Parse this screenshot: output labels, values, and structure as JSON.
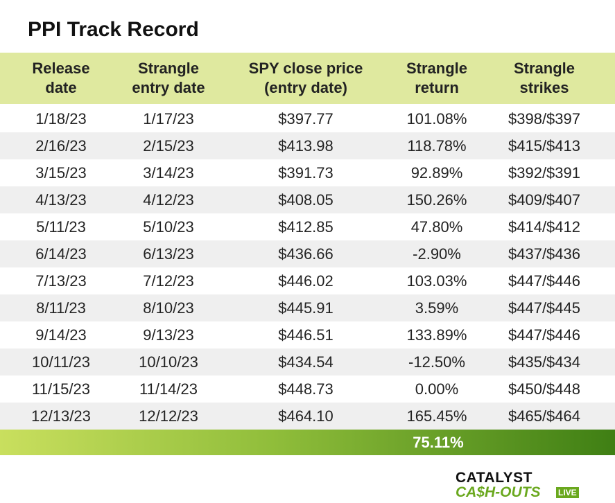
{
  "header": {
    "title": "PPI Track Record"
  },
  "table": {
    "columns": [
      "Release\ndate",
      "Strangle\nentry date",
      "SPY close price\n(entry date)",
      "Strangle\nreturn",
      "Strangle\nstrikes"
    ],
    "rows": [
      [
        "1/18/23",
        "1/17/23",
        "$397.77",
        "101.08%",
        "$398/$397"
      ],
      [
        "2/16/23",
        "2/15/23",
        "$413.98",
        "118.78%",
        "$415/$413"
      ],
      [
        "3/15/23",
        "3/14/23",
        "$391.73",
        "92.89%",
        "$392/$391"
      ],
      [
        "4/13/23",
        "4/12/23",
        "$408.05",
        "150.26%",
        "$409/$407"
      ],
      [
        "5/11/23",
        "5/10/23",
        "$412.85",
        "47.80%",
        "$414/$412"
      ],
      [
        "6/14/23",
        "6/13/23",
        "$436.66",
        "-2.90%",
        "$437/$436"
      ],
      [
        "7/13/23",
        "7/12/23",
        "$446.02",
        "103.03%",
        "$447/$446"
      ],
      [
        "8/11/23",
        "8/10/23",
        "$445.91",
        "3.59%",
        "$447/$445"
      ],
      [
        "9/14/23",
        "9/13/23",
        "$446.51",
        "133.89%",
        "$447/$446"
      ],
      [
        "10/11/23",
        "10/10/23",
        "$434.54",
        "-12.50%",
        "$435/$434"
      ],
      [
        "11/15/23",
        "11/14/23",
        "$448.73",
        "0.00%",
        "$450/$448"
      ],
      [
        "12/13/23",
        "12/12/23",
        "$464.10",
        "165.45%",
        "$465/$464"
      ]
    ],
    "total": "75.11%"
  },
  "logo": {
    "line1": "CATALYST",
    "line2": "CA$H-OUTS",
    "badge": "LIVE"
  }
}
